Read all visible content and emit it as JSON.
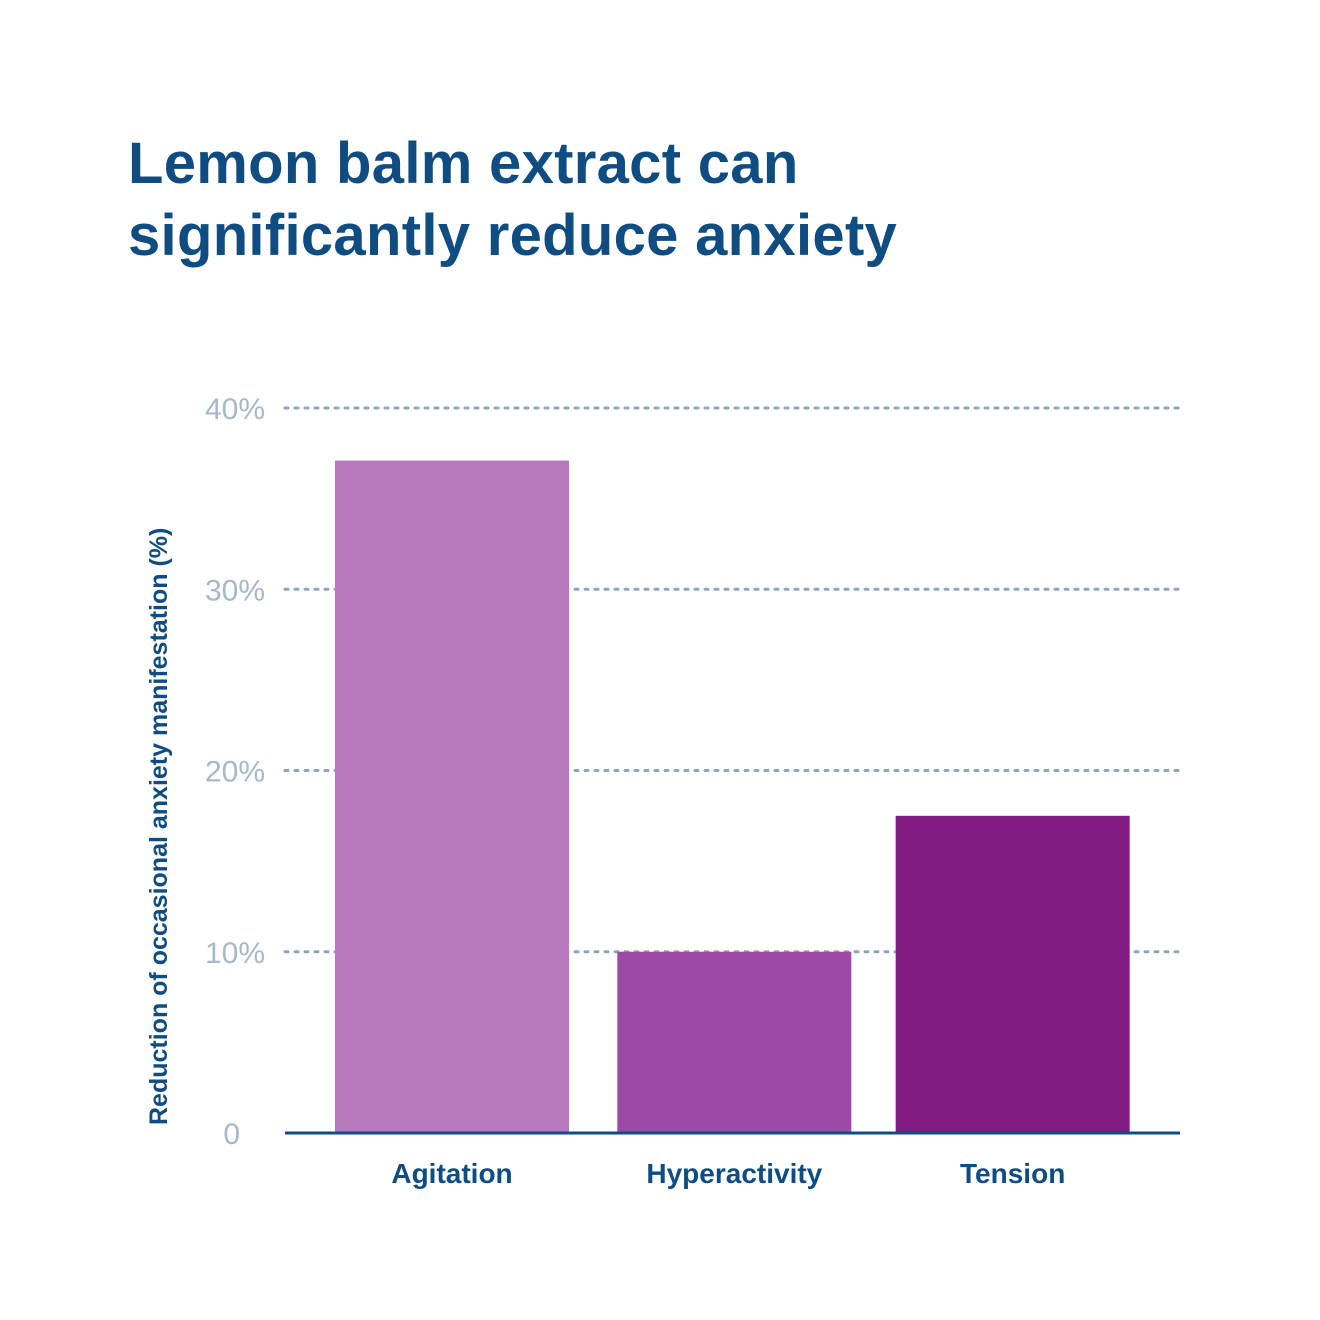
{
  "title": {
    "line1": "Lemon balm extract can",
    "line2": "significantly reduce anxiety"
  },
  "chart_data": {
    "type": "bar",
    "title": "Lemon balm extract can significantly reduce anxiety",
    "categories": [
      "Agitation",
      "Hyperactivity",
      "Tension"
    ],
    "values": [
      37.1,
      10,
      17.5
    ],
    "colors": [
      "#b878be",
      "#9d4aa6",
      "#811a83"
    ],
    "xlabel": "",
    "ylabel": "Reduction of occasional anxiety manifestation (%)",
    "ylim": [
      0,
      40
    ],
    "yticks": [
      0,
      10,
      20,
      30,
      40
    ],
    "ytick_labels": [
      "0",
      "10%",
      "20%",
      "30%",
      "40%"
    ],
    "grid": true,
    "legend": "none"
  },
  "colors": {
    "title": "#0f4c81",
    "tick": "#a6b9cb",
    "grid": "#8fa5bb",
    "baseline": "#0f4c81"
  }
}
